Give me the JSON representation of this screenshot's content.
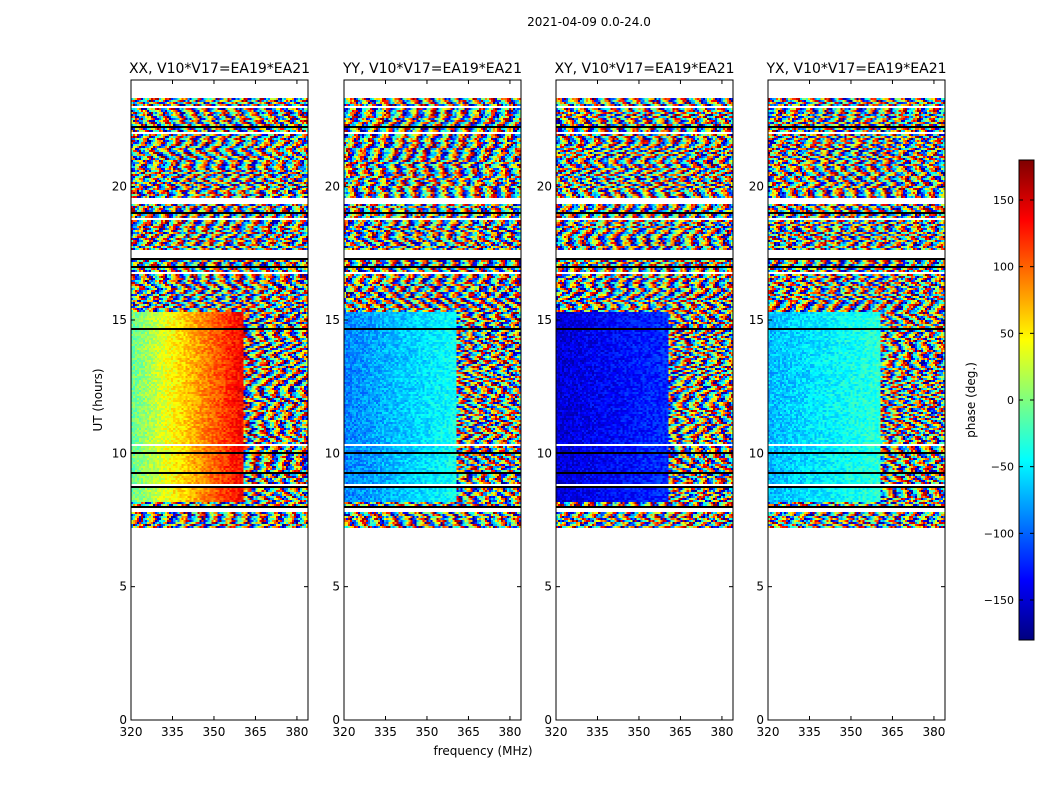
{
  "figure": {
    "suptitle": "2021-04-09 0.0-24.0",
    "xlabel": "frequency (MHz)",
    "ylabel": "UT (hours)"
  },
  "colorbar": {
    "label": "phase (deg.)",
    "range": [
      -180,
      180
    ],
    "ticks": [
      -150,
      -100,
      -50,
      0,
      50,
      100,
      150
    ],
    "tick_labels": [
      "−150",
      "−100",
      "−50",
      "0",
      "50",
      "100",
      "150"
    ],
    "colormap": "jet",
    "colors": [
      "#00007f",
      "#0000ff",
      "#007fff",
      "#00ffff",
      "#7fff7f",
      "#ffff00",
      "#ff7f00",
      "#ff0000",
      "#7f0000"
    ]
  },
  "chart_data": {
    "type": "heatmap",
    "x": {
      "range": [
        320,
        384
      ],
      "ticks": [
        320,
        335,
        350,
        365,
        380
      ],
      "tick_labels": [
        "320",
        "335",
        "350",
        "365",
        "380"
      ]
    },
    "y": {
      "range": [
        0,
        24
      ],
      "ticks": [
        0,
        5,
        10,
        15,
        20
      ],
      "tick_labels": [
        "0",
        "5",
        "10",
        "15",
        "20"
      ]
    },
    "data_time_range": [
      7.2,
      23.4
    ],
    "panels": [
      {
        "title": "XX, V10*V17=EA19*EA21",
        "smooth_phase_deg": {
          "low_freq": -10,
          "high_freq": 140
        },
        "rfi_edge_mhz": 361
      },
      {
        "title": "YY, V10*V17=EA19*EA21",
        "smooth_phase_deg": {
          "low_freq": -90,
          "high_freq": -40
        },
        "rfi_edge_mhz": 361
      },
      {
        "title": "XY, V10*V17=EA19*EA21",
        "smooth_phase_deg": {
          "low_freq": -150,
          "high_freq": -120
        },
        "rfi_edge_mhz": 361
      },
      {
        "title": "YX, V10*V17=EA19*EA21",
        "smooth_phase_deg": {
          "low_freq": -70,
          "high_freq": -30
        },
        "rfi_edge_mhz": 361
      }
    ]
  }
}
